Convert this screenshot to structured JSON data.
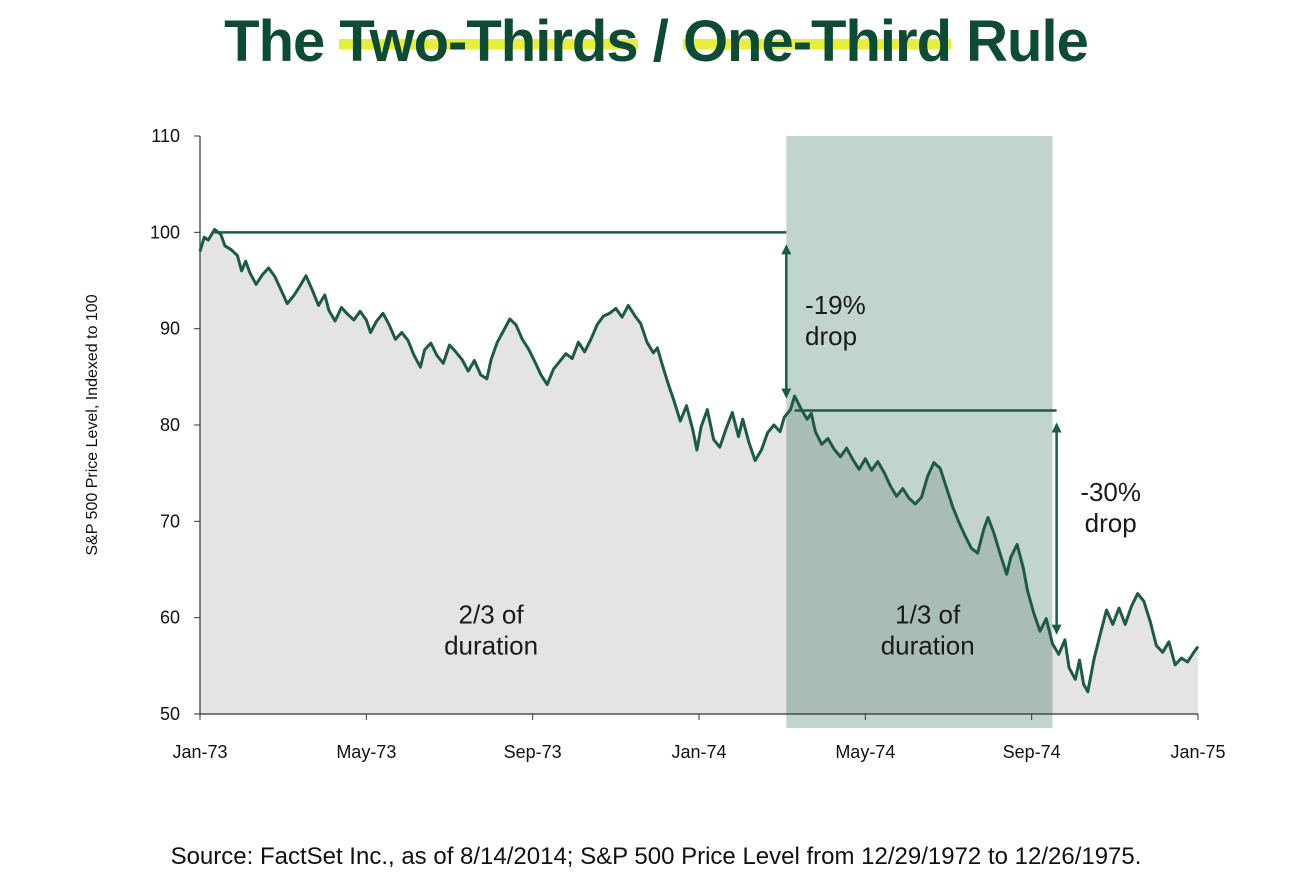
{
  "title": {
    "part1": "The ",
    "highlight1": "Two-Thirds",
    "part2": " / ",
    "highlight2": "One-Third",
    "part3": " Rule"
  },
  "source": "Source: FactSet Inc., as of 8/14/2014; S&P 500 Price Level from 12/29/1972 to 12/26/1975.",
  "colors": {
    "title": "#0f4a32",
    "highlight": "#e6f03c",
    "line": "#1e5a44",
    "area_light": "#e4e4e4",
    "area_dark": "#c9c9c9",
    "shade": "#8fb0a5"
  },
  "chart_data": {
    "type": "line",
    "title": "",
    "xlabel": "",
    "ylabel": "S&P 500 Price Level, Indexed to 100",
    "ylim": [
      50,
      110
    ],
    "yticks": [
      50,
      60,
      70,
      80,
      90,
      100,
      110
    ],
    "xlim": [
      0,
      24
    ],
    "xticks": [
      {
        "pos": 0,
        "label": "Jan-73"
      },
      {
        "pos": 4,
        "label": "May-73"
      },
      {
        "pos": 8,
        "label": "Sep-73"
      },
      {
        "pos": 12,
        "label": "Jan-74"
      },
      {
        "pos": 16,
        "label": "May-74"
      },
      {
        "pos": 20,
        "label": "Sep-74"
      },
      {
        "pos": 24,
        "label": "Jan-75"
      }
    ],
    "shaded_region": [
      14.1,
      20.5
    ],
    "series": [
      {
        "name": "S&P 500",
        "points": [
          [
            0.0,
            98
          ],
          [
            0.1,
            99.5
          ],
          [
            0.2,
            99.2
          ],
          [
            0.35,
            100.3
          ],
          [
            0.5,
            99.8
          ],
          [
            0.6,
            98.6
          ],
          [
            0.75,
            98.2
          ],
          [
            0.9,
            97.6
          ],
          [
            1.0,
            96
          ],
          [
            1.1,
            97
          ],
          [
            1.2,
            95.8
          ],
          [
            1.35,
            94.6
          ],
          [
            1.5,
            95.6
          ],
          [
            1.65,
            96.3
          ],
          [
            1.8,
            95.4
          ],
          [
            1.95,
            94
          ],
          [
            2.1,
            92.6
          ],
          [
            2.25,
            93.4
          ],
          [
            2.4,
            94.4
          ],
          [
            2.55,
            95.5
          ],
          [
            2.7,
            94
          ],
          [
            2.85,
            92.4
          ],
          [
            3.0,
            93.5
          ],
          [
            3.1,
            91.9
          ],
          [
            3.25,
            90.8
          ],
          [
            3.4,
            92.2
          ],
          [
            3.55,
            91.5
          ],
          [
            3.7,
            90.9
          ],
          [
            3.85,
            91.8
          ],
          [
            4.0,
            90.9
          ],
          [
            4.1,
            89.6
          ],
          [
            4.25,
            90.8
          ],
          [
            4.4,
            91.6
          ],
          [
            4.55,
            90.4
          ],
          [
            4.7,
            88.9
          ],
          [
            4.85,
            89.6
          ],
          [
            5.0,
            88.8
          ],
          [
            5.15,
            87.2
          ],
          [
            5.3,
            86
          ],
          [
            5.4,
            87.8
          ],
          [
            5.55,
            88.5
          ],
          [
            5.7,
            87.2
          ],
          [
            5.85,
            86.4
          ],
          [
            6.0,
            88.3
          ],
          [
            6.15,
            87.6
          ],
          [
            6.3,
            86.8
          ],
          [
            6.45,
            85.6
          ],
          [
            6.6,
            86.7
          ],
          [
            6.75,
            85.2
          ],
          [
            6.9,
            84.8
          ],
          [
            7.0,
            86.8
          ],
          [
            7.15,
            88.6
          ],
          [
            7.3,
            89.8
          ],
          [
            7.45,
            91
          ],
          [
            7.6,
            90.4
          ],
          [
            7.75,
            88.9
          ],
          [
            7.9,
            87.9
          ],
          [
            8.05,
            86.6
          ],
          [
            8.2,
            85.2
          ],
          [
            8.35,
            84.2
          ],
          [
            8.5,
            85.8
          ],
          [
            8.65,
            86.6
          ],
          [
            8.8,
            87.4
          ],
          [
            8.95,
            86.9
          ],
          [
            9.1,
            88.6
          ],
          [
            9.25,
            87.6
          ],
          [
            9.4,
            88.9
          ],
          [
            9.55,
            90.4
          ],
          [
            9.7,
            91.3
          ],
          [
            9.85,
            91.6
          ],
          [
            10.0,
            92.1
          ],
          [
            10.15,
            91.2
          ],
          [
            10.3,
            92.4
          ],
          [
            10.45,
            91.4
          ],
          [
            10.6,
            90.5
          ],
          [
            10.75,
            88.6
          ],
          [
            10.9,
            87.5
          ],
          [
            11.0,
            88
          ],
          [
            11.1,
            86.5
          ],
          [
            11.25,
            84.4
          ],
          [
            11.4,
            82.5
          ],
          [
            11.55,
            80.4
          ],
          [
            11.7,
            82
          ],
          [
            11.85,
            79.5
          ],
          [
            11.95,
            77.4
          ],
          [
            12.05,
            79.8
          ],
          [
            12.2,
            81.6
          ],
          [
            12.35,
            78.5
          ],
          [
            12.5,
            77.7
          ],
          [
            12.65,
            79.6
          ],
          [
            12.8,
            81.3
          ],
          [
            12.95,
            78.8
          ],
          [
            13.05,
            80.6
          ],
          [
            13.2,
            78.2
          ],
          [
            13.35,
            76.3
          ],
          [
            13.5,
            77.4
          ],
          [
            13.65,
            79.2
          ],
          [
            13.8,
            80
          ],
          [
            13.95,
            79.3
          ],
          [
            14.05,
            80.8
          ],
          [
            14.2,
            81.6
          ],
          [
            14.3,
            83
          ],
          [
            14.45,
            81.7
          ],
          [
            14.6,
            80.6
          ],
          [
            14.7,
            81.2
          ],
          [
            14.8,
            79.3
          ],
          [
            14.95,
            78
          ],
          [
            15.1,
            78.6
          ],
          [
            15.25,
            77.5
          ],
          [
            15.4,
            76.7
          ],
          [
            15.55,
            77.6
          ],
          [
            15.7,
            76.4
          ],
          [
            15.85,
            75.4
          ],
          [
            16.0,
            76.5
          ],
          [
            16.15,
            75.3
          ],
          [
            16.3,
            76.2
          ],
          [
            16.45,
            75.1
          ],
          [
            16.6,
            73.7
          ],
          [
            16.75,
            72.6
          ],
          [
            16.9,
            73.4
          ],
          [
            17.05,
            72.4
          ],
          [
            17.2,
            71.8
          ],
          [
            17.35,
            72.5
          ],
          [
            17.5,
            74.7
          ],
          [
            17.65,
            76.1
          ],
          [
            17.8,
            75.5
          ],
          [
            17.95,
            73.5
          ],
          [
            18.1,
            71.5
          ],
          [
            18.25,
            69.9
          ],
          [
            18.4,
            68.5
          ],
          [
            18.55,
            67.2
          ],
          [
            18.7,
            66.7
          ],
          [
            18.85,
            69.2
          ],
          [
            18.95,
            70.4
          ],
          [
            19.1,
            68.7
          ],
          [
            19.25,
            66.5
          ],
          [
            19.4,
            64.5
          ],
          [
            19.5,
            66.3
          ],
          [
            19.65,
            67.6
          ],
          [
            19.8,
            65.1
          ],
          [
            19.9,
            62.8
          ],
          [
            20.05,
            60.5
          ],
          [
            20.2,
            58.6
          ],
          [
            20.35,
            59.9
          ],
          [
            20.5,
            57.3
          ],
          [
            20.65,
            56.2
          ],
          [
            20.8,
            57.7
          ],
          [
            20.9,
            54.8
          ],
          [
            21.05,
            53.6
          ],
          [
            21.15,
            55.6
          ],
          [
            21.25,
            53.1
          ],
          [
            21.35,
            52.3
          ],
          [
            21.5,
            55.7
          ],
          [
            21.65,
            58.3
          ],
          [
            21.8,
            60.8
          ],
          [
            21.95,
            59.3
          ],
          [
            22.1,
            61
          ],
          [
            22.25,
            59.3
          ],
          [
            22.4,
            61.2
          ],
          [
            22.55,
            62.5
          ],
          [
            22.7,
            61.7
          ],
          [
            22.85,
            59.6
          ],
          [
            23.0,
            57.1
          ],
          [
            23.15,
            56.4
          ],
          [
            23.3,
            57.5
          ],
          [
            23.45,
            55.1
          ],
          [
            23.6,
            55.8
          ],
          [
            23.75,
            55.4
          ],
          [
            23.9,
            56.4
          ],
          [
            24.0,
            57
          ]
        ]
      }
    ],
    "reference_lines": [
      {
        "name": "peak-level",
        "y": 100,
        "x0": 0.35,
        "x1": 14.1
      },
      {
        "name": "mid-level",
        "y": 81.5,
        "x0": 14.3,
        "x1": 20.6
      }
    ],
    "arrows": [
      {
        "name": "drop-19-arrow",
        "x": 14.1,
        "from": 100,
        "to": 81.5
      },
      {
        "name": "drop-30-arrow",
        "x": 20.6,
        "from": 81.5,
        "to": 57
      }
    ],
    "annotations": [
      {
        "name": "drop-19-label",
        "lines": [
          "-19%",
          "drop"
        ],
        "x": 14.55,
        "y": 91.5,
        "align": "start"
      },
      {
        "name": "drop-30-label",
        "lines": [
          "-30%",
          "drop"
        ],
        "x": 21.9,
        "y": 72.1,
        "align": "middle"
      },
      {
        "name": "two-thirds-label",
        "lines": [
          "2/3 of",
          "duration"
        ],
        "x": 7.0,
        "y": 59.4,
        "align": "middle"
      },
      {
        "name": "one-third-label",
        "lines": [
          "1/3 of",
          "duration"
        ],
        "x": 17.5,
        "y": 59.4,
        "align": "middle"
      }
    ]
  }
}
